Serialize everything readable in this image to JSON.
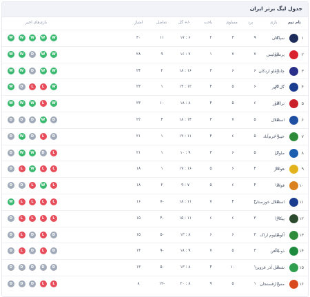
{
  "title": "جدول لیگ برتر ایران",
  "headers": {
    "team": "نام تیم",
    "played": "بازی",
    "won": "برد",
    "draw": "مساوی",
    "lost": "باخت",
    "goals": "گل +/-",
    "diff": "تفاضل",
    "points": "امتیاز",
    "form": "بازی‌های اخیر"
  },
  "form_colors": {
    "W": "#3ab970",
    "D": "#a0aab8",
    "L": "#e84d5b"
  },
  "rows": [
    {
      "rank": "۱",
      "team": "سپاهان",
      "logo": "#1f2d5c",
      "played": "۱۴",
      "won": "۹",
      "draw": "۳",
      "lost": "۲",
      "goals": "۱۷ : ۶",
      "diff": "۱۱",
      "points": "۳۰",
      "form": [
        "W",
        "W",
        "W",
        "W",
        "W"
      ]
    },
    {
      "rank": "۲",
      "team": "پرسپولیس",
      "logo": "#d9232e",
      "played": "۱۵",
      "won": "۷",
      "draw": "۷",
      "lost": "۱",
      "goals": "۱۶ : ۷",
      "diff": "۹",
      "points": "۲۸",
      "form": [
        "W",
        "W",
        "D",
        "W",
        "W"
      ]
    },
    {
      "rank": "۳",
      "team": "چادرملو اردکان",
      "logo": "#2a2f8a",
      "played": "۱۵",
      "won": "۶",
      "draw": "۶",
      "lost": "۳",
      "goals": "۱۸ : ۱۶",
      "diff": "۲",
      "points": "۲۴",
      "form": [
        "W",
        "W",
        "D",
        "W",
        "W"
      ]
    },
    {
      "rank": "۴",
      "team": "گل گهر",
      "logo": "#1a3d8f",
      "played": "۱۵",
      "won": "۶",
      "draw": "۵",
      "lost": "۴",
      "goals": "۱۳ : ۱۲",
      "diff": "۱",
      "points": "۲۳",
      "form": [
        "W",
        "D",
        "L",
        "L",
        "W"
      ]
    },
    {
      "rank": "۵",
      "team": "تراکتور",
      "logo": "#c9202a",
      "played": "۱۵",
      "won": "۶",
      "draw": "۵",
      "lost": "۴",
      "goals": "۱۸ : ۸",
      "diff": "۱۰",
      "points": "۲۳",
      "form": [
        "W",
        "W",
        "W",
        "L",
        "W"
      ]
    },
    {
      "rank": "۶",
      "team": "استقلال",
      "logo": "#1e4fa3",
      "played": "۱۵",
      "won": "۵",
      "draw": "۷",
      "lost": "۳",
      "goals": "۱۸ : ۱۴",
      "diff": "۴",
      "points": "۲۲",
      "form": [
        "D",
        "D",
        "D",
        "W",
        "D"
      ]
    },
    {
      "rank": "۷",
      "team": "خیبر خرم‌آباد",
      "logo": "#2e8b3a",
      "played": "۱۵",
      "won": "۵",
      "draw": "۶",
      "lost": "۴",
      "goals": "۱۲ : ۱۱",
      "diff": "۱",
      "points": "۲۱",
      "form": [
        "D",
        "W",
        "D",
        "L",
        "D"
      ]
    },
    {
      "rank": "۸",
      "team": "ملوان",
      "logo": "#1c5fb0",
      "played": "۱۴",
      "won": "۵",
      "draw": "۶",
      "lost": "۳",
      "goals": "۱۰ : ۹",
      "diff": "۱",
      "points": "۲۱",
      "form": [
        "D",
        "W",
        "W",
        "D",
        "L"
      ]
    },
    {
      "rank": "۹",
      "team": "هوادار",
      "logo": "#e2b21c",
      "played": "۱۵",
      "won": "۴",
      "draw": "۶",
      "lost": "۵",
      "goals": "۱۷ : ۱۶",
      "diff": "۱",
      "points": "۱۸",
      "form": [
        "D",
        "L",
        "W",
        "L",
        "L"
      ]
    },
    {
      "rank": "۱۰",
      "team": "فولاد",
      "logo": "#d9821f",
      "played": "۱۵",
      "won": "۴",
      "draw": "۶",
      "lost": "۵",
      "goals": "۹ : ۷",
      "diff": "۲",
      "points": "۱۸",
      "form": [
        "D",
        "D",
        "L",
        "W",
        "L"
      ]
    },
    {
      "rank": "۱۱",
      "team": "استقلال خوزستان",
      "logo": "#1a3d8f",
      "played": "۱۵",
      "won": "۴",
      "draw": "۴",
      "lost": "۷",
      "goals": "۱۸ : ۱۱",
      "diff": "۷-",
      "points": "۱۶",
      "form": [
        "W",
        "L",
        "L",
        "L",
        "L"
      ]
    },
    {
      "rank": "۱۲",
      "team": "پیکان",
      "logo": "#2c4a2e",
      "played": "۱۵",
      "won": "۳",
      "draw": "۶",
      "lost": "۶",
      "goals": "۱۵ : ۱۱",
      "diff": "۴-",
      "points": "۱۵",
      "form": [
        "D",
        "L",
        "L",
        "L",
        "L"
      ]
    },
    {
      "rank": "۱۳",
      "team": "آلومینیوم اراک",
      "logo": "#2e8b3a",
      "played": "۱۵",
      "won": "۳",
      "draw": "۶",
      "lost": "۶",
      "goals": "۱۳ : ۸",
      "diff": "۵-",
      "points": "۱۵",
      "form": [
        "D",
        "L",
        "D",
        "L",
        "D"
      ]
    },
    {
      "rank": "۱۴",
      "team": "ذوب‌آهن",
      "logo": "#1e8a3e",
      "played": "۱۵",
      "won": "۳",
      "draw": "۵",
      "lost": "۷",
      "goals": "۱۸ : ۹",
      "diff": "۹-",
      "points": "۱۴",
      "form": [
        "D",
        "L",
        "D",
        "L",
        "D"
      ]
    },
    {
      "rank": "۱۵",
      "team": "شمس آذر قزوین",
      "logo": "#2f9e4f",
      "played": "۱۵",
      "won": "۱",
      "draw": "۱۰",
      "lost": "۴",
      "goals": "۱۳ : ۸",
      "diff": "۵-",
      "points": "۱۳",
      "form": [
        "D",
        "D",
        "D",
        "D",
        "D"
      ]
    },
    {
      "rank": "۱۶",
      "team": "مس رفسنجان",
      "logo": "#d84a1e",
      "played": "۱۵",
      "won": "۱",
      "draw": "۵",
      "lost": "۹",
      "goals": "۲۰ : ۸",
      "diff": "۱۲-",
      "points": "۸",
      "form": [
        "D",
        "D",
        "D",
        "L",
        "L"
      ]
    }
  ]
}
